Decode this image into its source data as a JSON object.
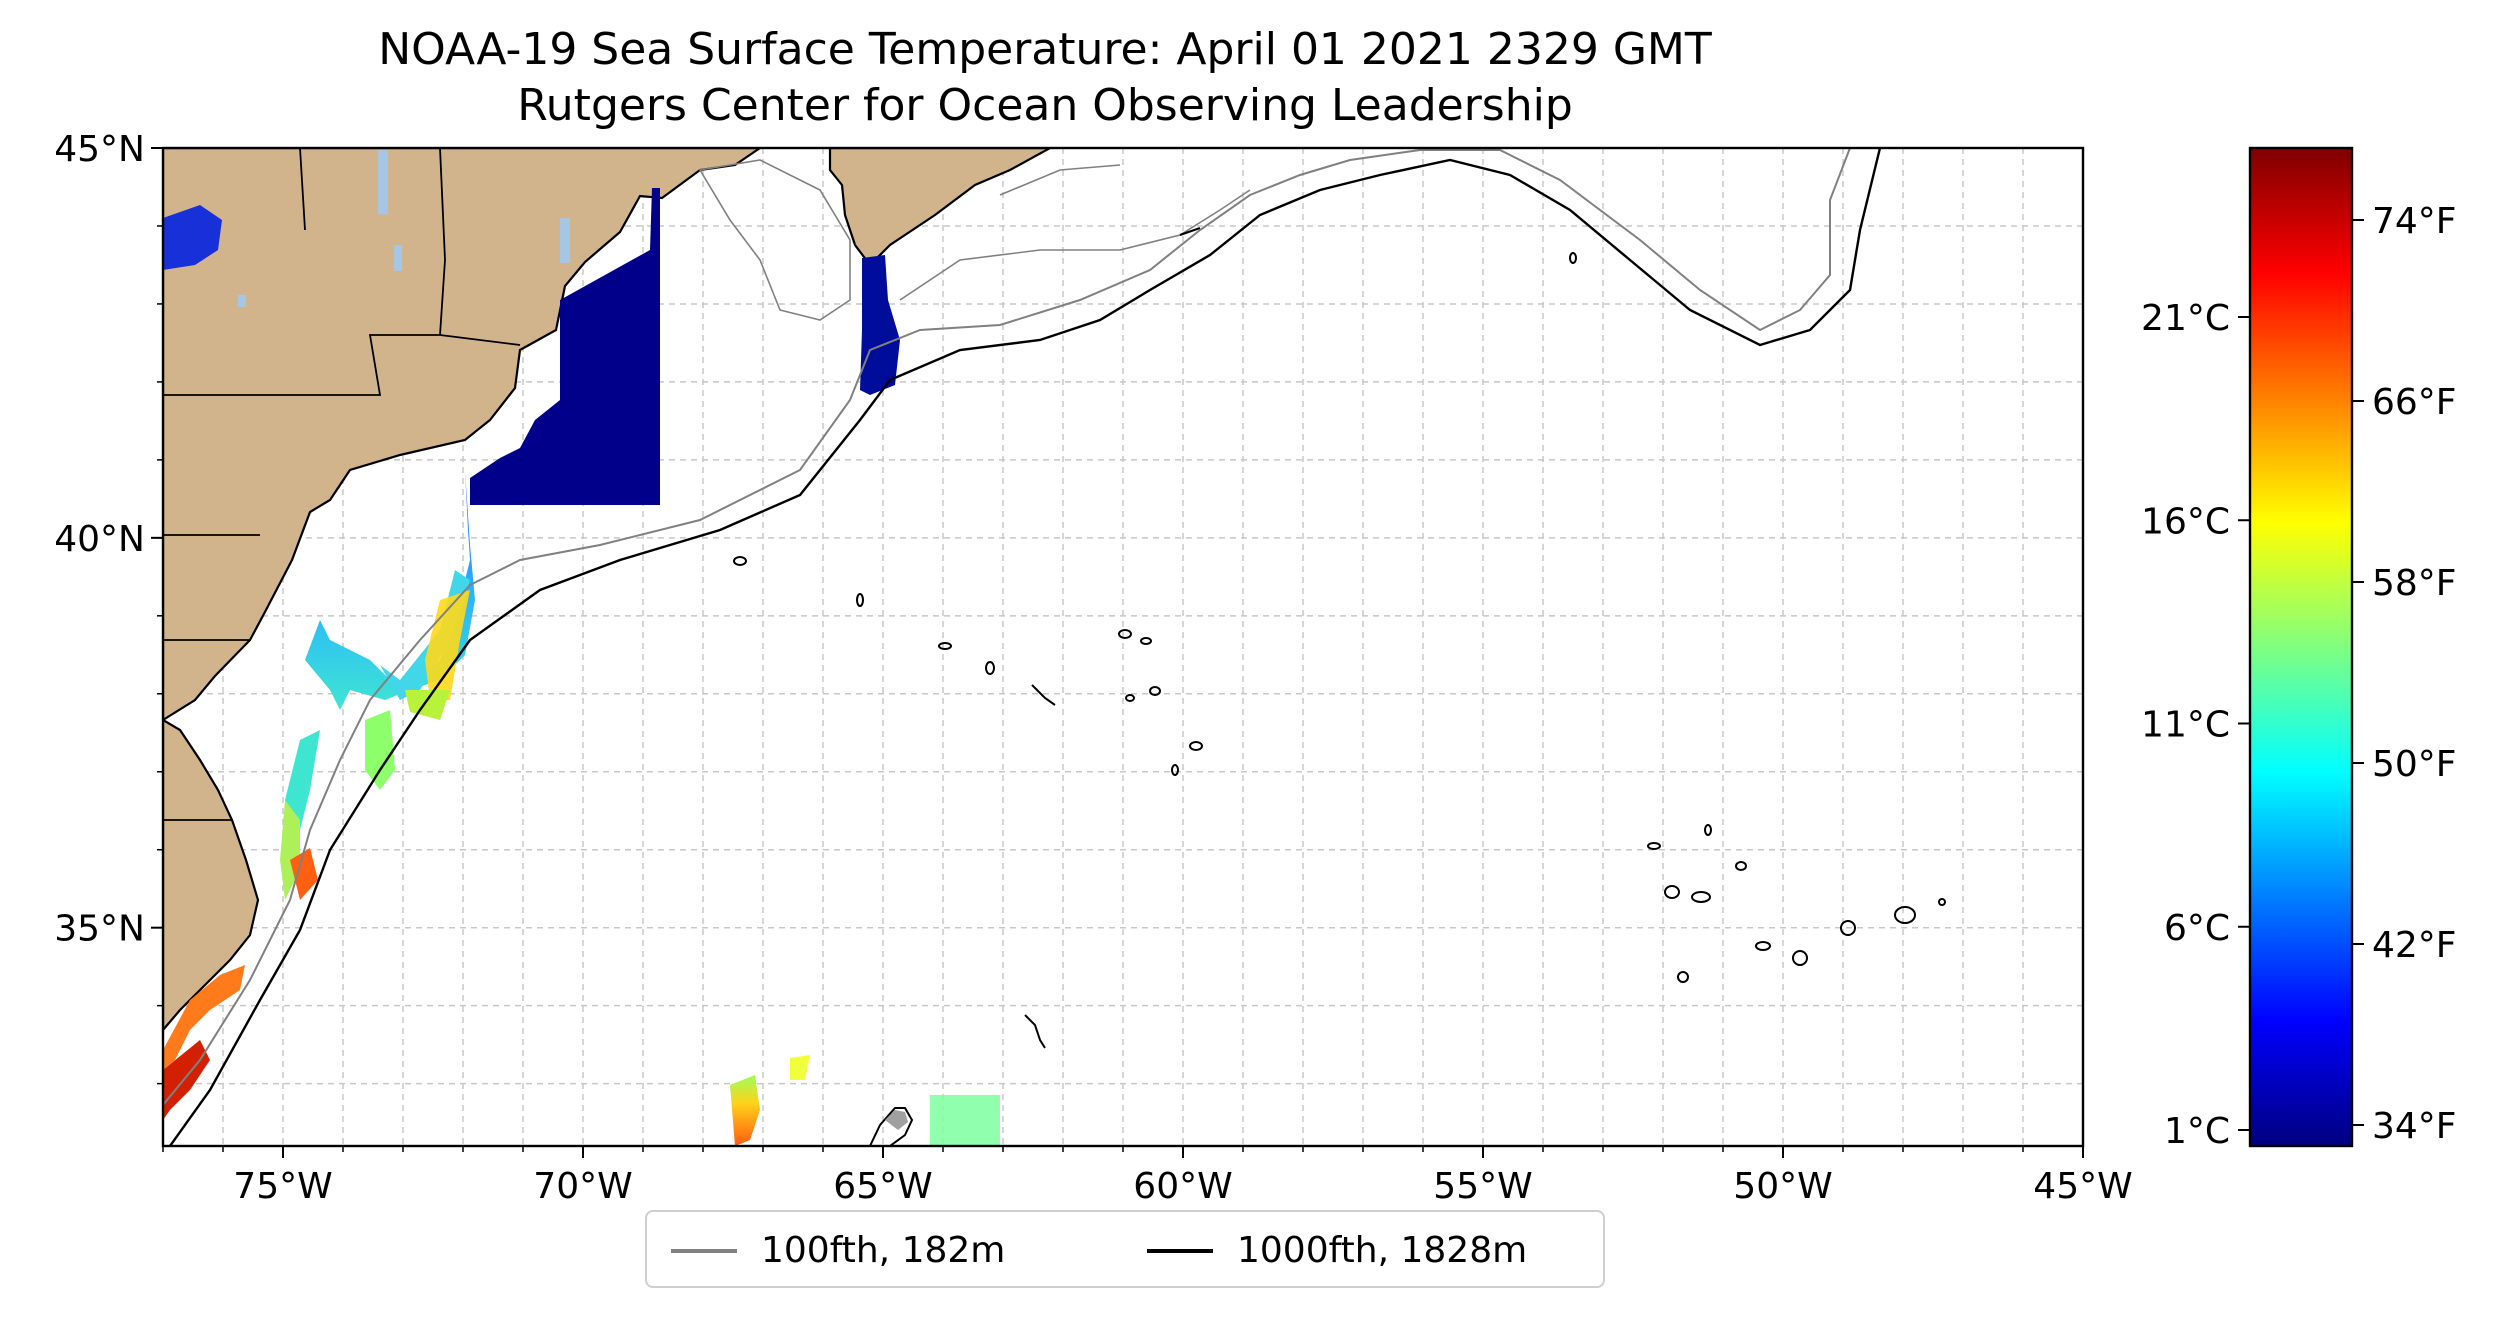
{
  "title": "NOAA-19 Sea Surface Temperature: April 01 2021 2329 GMT",
  "subtitle": "Rutgers Center for Ocean Observing Leadership",
  "map": {
    "lon_range": [
      -77,
      -45
    ],
    "lat_range": [
      32.2,
      45
    ],
    "lon_ticks": [
      {
        "lon": -75,
        "label": "75°W"
      },
      {
        "lon": -70,
        "label": "70°W"
      },
      {
        "lon": -65,
        "label": "65°W"
      },
      {
        "lon": -60,
        "label": "60°W"
      },
      {
        "lon": -55,
        "label": "55°W"
      },
      {
        "lon": -50,
        "label": "50°W"
      },
      {
        "lon": -45,
        "label": "45°W"
      }
    ],
    "lat_ticks": [
      {
        "lat": 45,
        "label": "45°N"
      },
      {
        "lat": 40,
        "label": "40°N"
      },
      {
        "lat": 35,
        "label": "35°N"
      }
    ],
    "gridlines": true,
    "colors": {
      "land": "#d2b48c",
      "lakes": "#a6c6e6",
      "grid": "#c8c8c8",
      "contour_100": "#808080",
      "contour_1000": "#000000"
    }
  },
  "legend": {
    "placement": "bottom-center",
    "items": [
      {
        "label": "100fth, 182m",
        "color": "#808080"
      },
      {
        "label": "1000fth, 1828m",
        "color": "#000000"
      }
    ]
  },
  "colorbar": {
    "colormap": "jet",
    "celsius_ticks": [
      "21°C",
      "16°C",
      "11°C",
      "6°C",
      "1°C"
    ],
    "fahrenheit_ticks": [
      "74°F",
      "66°F",
      "58°F",
      "50°F",
      "42°F",
      "34°F"
    ]
  }
}
